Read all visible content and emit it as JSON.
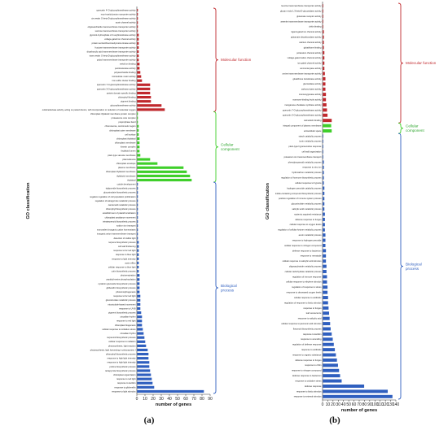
{
  "colors": {
    "molecular_function": "#c0282d",
    "cellular_component": "#3fcf2a",
    "biological_process": "#2f5fbf",
    "mf_text": "#c0282d",
    "cc_text": "#2fa62f",
    "bp_text": "#2f5fbf"
  },
  "chart_data": [
    {
      "type": "bar",
      "orientation": "horizontal",
      "panel_label": "(a)",
      "xlabel": "number of genes",
      "ylabel": "GO classification",
      "xlim": [
        0,
        90
      ],
      "xticks": [
        0,
        10,
        20,
        30,
        40,
        50,
        60,
        70,
        80,
        90
      ],
      "groups": [
        {
          "name": "Molecular function",
          "categories": [
            "quercetin 4'-O-glucosyltransferase activity",
            "myo-inositol:proton symporter activity",
            "cis-zeatin O-beta-D-glucosyltransferase activity",
            "auxin channel activity",
            "oligosaccharide transmembrane transporter activity",
            "sucrose transmembrane transporter activity",
            "glycerol-3-phosphate 2-O-acyltransferase activity",
            "voltage-gated ion channel activity",
            "protein serine/threonine/tyrosine kinase activity",
            "fructose transmembrane transporter activity",
            "dicarboxylic acid transmembrane transporter activity",
            "trans-zeatin O-beta-D-glucosyltransferase activity",
            "polyol transmembrane transporter activity",
            "metal ion binding",
            "pectinesterase activity",
            "polysaccharide binding",
            "microtubule motor activity",
            "iron-sulfur cluster binding",
            "quercetin 7-O-glucosyltransferase activity",
            "quercetin 3-O-glucosyltransferase activity",
            "protein domain specific binding",
            "chlorophyll binding",
            "pigment binding",
            "glucosyltransferase activity",
            "oxidoreductase activity, acting on paired donors, with incorporation or reduction of molecular oxygen"
          ],
          "values": [
            1,
            1,
            1,
            1,
            1,
            1,
            2,
            2,
            2,
            2,
            2,
            2,
            2,
            3,
            3,
            4,
            5,
            6,
            16,
            16,
            16,
            17,
            17,
            30,
            34
          ]
        },
        {
          "name": "Cellular component",
          "categories": [
            "chloroplast thylakoid membrane protein complex",
            "proteasome core complex",
            "preprophase band",
            "chromosome, centromeric region",
            "chloroplast outer membrane",
            "cell surface",
            "chloroplast thylakoid",
            "chloroplast membrane",
            "kinesin complex",
            "thylakoid lumen",
            "plant-type vacuole membrane",
            "plasmodesma",
            "chloroplast envelope",
            "plasma membrane",
            "chloroplast thylakoid membrane",
            "thylakoid membrane",
            "thylakoid"
          ],
          "values": [
            1,
            1,
            1,
            2,
            2,
            2,
            3,
            3,
            3,
            3,
            4,
            16,
            25,
            57,
            61,
            65,
            67
          ]
        },
        {
          "name": "Biological process",
          "categories": [
            "cuticle development",
            "triglyceride biosynthetic process",
            "glucosinolate biosynthetic process",
            "negative regulation of cell population proliferation",
            "regulation of tetrapyrrole metabolic process",
            "carotenoid metabolic process",
            "chlorophyll biosynthetic process",
            "establishment of plastid localization",
            "chloroplast avoidance movement",
            "tetraterpenoid biosynthetic process",
            "sodium ion transport",
            "monovalent inorganic cation homeostasis",
            "inorganic anion transmembrane transport",
            "detection of visible light",
            "terpene biosynthetic process",
            "cell wall thickening",
            "response to far red light",
            "response to blue light",
            "response to light intensity",
            "auxin efflux",
            "cellular response to blue light",
            "cutin biosynthetic process",
            "photorespiration",
            "peptidyl-serine phosphorylation",
            "cytokinin glucoside biosynthetic process",
            "gibberellin biosynthetic process",
            "photomorphogenesis",
            "response to far red light",
            "glucosinolate metabolic process",
            "microtubule-based movement",
            "response to UV-B",
            "pigment biosynthetic process",
            "circadian rhythm",
            "response to red light",
            "chloroplast biogenesis",
            "cellular response to oxidative stress",
            "circadian rhythm",
            "terpenoid biosynthetic process",
            "cellular response to radiation",
            "photosynthesis, light reaction",
            "photosynthesis, light harvesting in photosystem I",
            "chlorophyll biosynthetic process",
            "response to high light intensity",
            "response to high light intensity",
            "proline biosynthetic process",
            "tetrapyrrole biosynthetic process",
            "chloroplast organization",
            "response to red light",
            "response to karrikin",
            "response to gibberellin",
            "response to light stimulus"
          ],
          "values": [
            1,
            1,
            1,
            1,
            1,
            1,
            1,
            1,
            1,
            1,
            1,
            1,
            1,
            1,
            2,
            2,
            2,
            2,
            2,
            2,
            2,
            2,
            3,
            3,
            3,
            3,
            3,
            4,
            4,
            4,
            4,
            5,
            6,
            6,
            6,
            7,
            8,
            9,
            10,
            11,
            13,
            14,
            14,
            15,
            15,
            16,
            17,
            18,
            19,
            21,
            82
          ]
        }
      ]
    },
    {
      "type": "bar",
      "orientation": "horizontal",
      "panel_label": "(b)",
      "xlabel": "number of genes",
      "ylabel": "GO classification",
      "xlim": [
        0,
        140
      ],
      "xticks": [
        0,
        10,
        20,
        30,
        40,
        50,
        60,
        70,
        80,
        90,
        100,
        110,
        120,
        130,
        140
      ],
      "groups": [
        {
          "name": "Molecular function",
          "categories": [
            "leucine transmembrane transporter activity",
            "glucan endo-1,3-beta-D-glucosidase activity",
            "glutamate receptor activity",
            "arsenite transmembrane transporter activity",
            "chitin binding",
            "ligand-gated ion channel activity",
            "glutamate decarboxylase activity",
            "calcium channel activity",
            "glutathione binding",
            "potassium channel activity",
            "voltage-gated cation channel activity",
            "ion gated channel activity",
            "ammonia-lyase activity",
            "amine transmembrane transporter activity",
            "glutathione transferase activity",
            "glucosidase activity",
            "carboxy-lyase activity",
            "monooxygenase activity",
            "mannose-binding lectin activity",
            "manganese-chelatase synthase activity",
            "quercetin 7-O-glucosyltransferase activity",
            "quercetin 3-O-glucosyltransferase activity",
            "calmodulin binding"
          ],
          "values": [
            1,
            1,
            1,
            1,
            1,
            2,
            2,
            2,
            2,
            3,
            3,
            3,
            3,
            4,
            5,
            5,
            5,
            6,
            6,
            7,
            8,
            9,
            17
          ]
        },
        {
          "name": "Cellular component",
          "categories": [
            "integral component of plasma membrane",
            "extracellular space"
          ],
          "values": [
            16,
            17
          ]
        },
        {
          "name": "Biological process",
          "categories": [
            "starch catabolic process",
            "toxin metabolic process",
            "plant-type hypersensitive response",
            "cell wall organization",
            "potassium ion transmembrane transport",
            "phenylpropanoid metabolic process",
            "response to zinc ion",
            "hydrocarbon metabolic process",
            "regulation of hormone biosynthetic process",
            "cellular response to hypoxia",
            "hydrogen peroxide catabolic process",
            "indole-containing compound biosynthetic process",
            "positive regulation of immune system process",
            "glucosinolate metabolic process",
            "salicylic acid metabolic process",
            "systemic acquired resistance",
            "defense response to fungus",
            "cellular response to oxygen levels",
            "regulation of cellular ketone metabolic process",
            "auxin metabolic process",
            "response to hydrogen peroxide",
            "cellular response to nitrogen compound",
            "defense response to bacterium",
            "response to nematode",
            "cellular response to salicylic acid stimulus",
            "oligosaccharide metabolic process",
            "cellular carbohydrate catabolic process",
            "regulation of immune response",
            "cellular response to ethylene stimulus",
            "regulation of response to stress",
            "response to decreased oxygen levels",
            "cellular response to antibiotic",
            "regulation of response to biotic stimulus",
            "response to fungus",
            "leaf senescence",
            "response to salicylic acid",
            "cellular response to jasmonic acid stimulus",
            "flavonoid biosynthetic process",
            "response to karrikin",
            "response to wounding",
            "regulation of defense response",
            "response to antibiotic",
            "response to organic substance",
            "defense response to fungus",
            "response to chitin",
            "response to nitrogen compound",
            "defense response to bacterium",
            "response to oxidative stress",
            "defense response",
            "response to biotic stimulus",
            "response to external stimulus"
          ],
          "values": [
            1,
            1,
            1,
            1,
            1,
            2,
            2,
            2,
            2,
            2,
            3,
            3,
            3,
            3,
            3,
            4,
            4,
            4,
            4,
            5,
            5,
            5,
            6,
            6,
            6,
            7,
            7,
            8,
            8,
            9,
            9,
            10,
            10,
            11,
            12,
            13,
            14,
            15,
            17,
            19,
            21,
            23,
            25,
            27,
            29,
            31,
            33,
            36,
            79,
            124,
            133
          ]
        }
      ]
    }
  ],
  "labels": {
    "a_mf": "Molecular function",
    "a_cc": "Cellular\ncomponent",
    "a_bp": "Biological\nprocess",
    "b_mf": "Molecular function",
    "b_cc": "Cellular\ncomponent",
    "b_bp": "Biological\nprocess"
  }
}
